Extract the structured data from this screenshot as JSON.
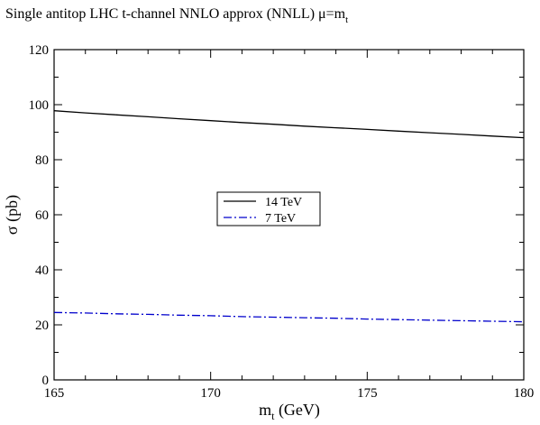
{
  "chart_data": {
    "type": "line",
    "title_parts": {
      "main": "Single antitop LHC   t-channel   NNLO approx (NNLL)   μ=m",
      "sub": "t"
    },
    "xlabel_parts": {
      "main": "m",
      "sub": "t",
      "rest": " (GeV)"
    },
    "ylabel": "σ  (pb)",
    "xlim": [
      165,
      180
    ],
    "ylim": [
      0,
      120
    ],
    "x_ticks": [
      "165",
      "170",
      "175",
      "180"
    ],
    "y_ticks": [
      "0",
      "20",
      "40",
      "60",
      "80",
      "100",
      "120"
    ],
    "x_tick_values": [
      165,
      170,
      175,
      180
    ],
    "y_tick_values": [
      0,
      20,
      40,
      60,
      80,
      100,
      120
    ],
    "grid": false,
    "legend_position": "center",
    "series": [
      {
        "name": "14 TeV",
        "color": "#000000",
        "style": "solid",
        "x": [
          165,
          166,
          167,
          168,
          169,
          170,
          171,
          172,
          173,
          174,
          175,
          176,
          177,
          178,
          179,
          180
        ],
        "y": [
          97.8,
          97.0,
          96.3,
          95.6,
          94.9,
          94.2,
          93.5,
          92.9,
          92.2,
          91.6,
          91.0,
          90.4,
          89.8,
          89.2,
          88.6,
          88.0
        ]
      },
      {
        "name": "7 TeV",
        "color": "#0000cc",
        "style": "dashdot",
        "x": [
          165,
          166,
          167,
          168,
          169,
          170,
          171,
          172,
          173,
          174,
          175,
          176,
          177,
          178,
          179,
          180
        ],
        "y": [
          24.5,
          24.3,
          24.0,
          23.8,
          23.5,
          23.3,
          23.0,
          22.8,
          22.6,
          22.4,
          22.1,
          21.9,
          21.7,
          21.5,
          21.3,
          21.1
        ]
      }
    ]
  }
}
